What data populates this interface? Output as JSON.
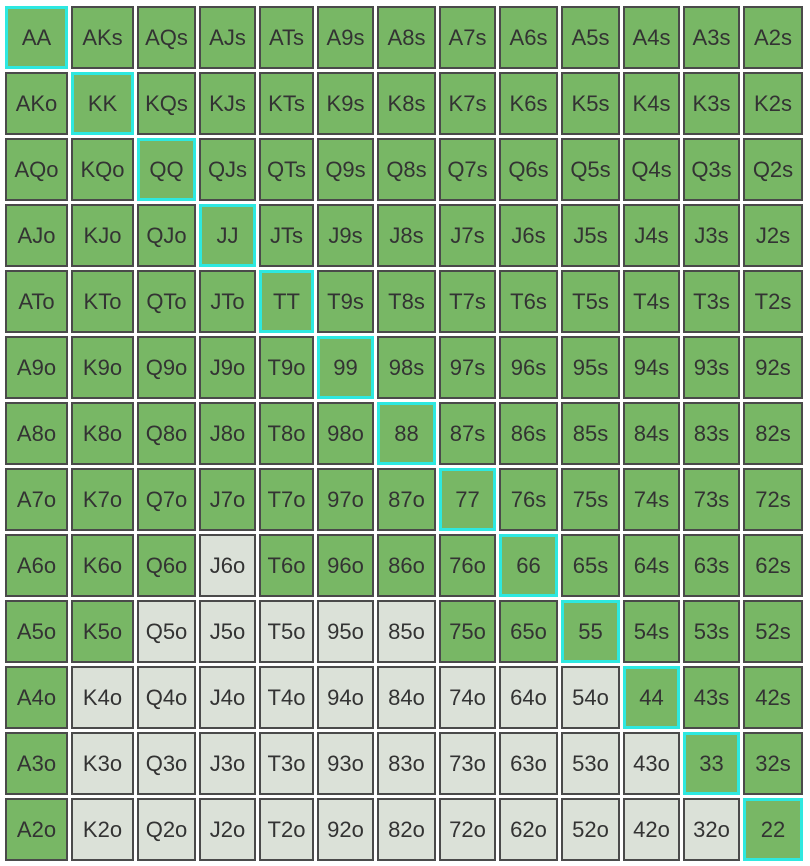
{
  "colors": {
    "selected": "#78b765",
    "unselected": "#dbe1d8",
    "pair_border": "#2ee8e0",
    "cell_border": "#4a4a4a",
    "text": "#333333"
  },
  "grid": {
    "rows": [
      [
        {
          "label": "AA",
          "selected": true,
          "pair": true
        },
        {
          "label": "AKs",
          "selected": true
        },
        {
          "label": "AQs",
          "selected": true
        },
        {
          "label": "AJs",
          "selected": true
        },
        {
          "label": "ATs",
          "selected": true
        },
        {
          "label": "A9s",
          "selected": true
        },
        {
          "label": "A8s",
          "selected": true
        },
        {
          "label": "A7s",
          "selected": true
        },
        {
          "label": "A6s",
          "selected": true
        },
        {
          "label": "A5s",
          "selected": true
        },
        {
          "label": "A4s",
          "selected": true
        },
        {
          "label": "A3s",
          "selected": true
        },
        {
          "label": "A2s",
          "selected": true
        }
      ],
      [
        {
          "label": "AKo",
          "selected": true
        },
        {
          "label": "KK",
          "selected": true,
          "pair": true
        },
        {
          "label": "KQs",
          "selected": true
        },
        {
          "label": "KJs",
          "selected": true
        },
        {
          "label": "KTs",
          "selected": true
        },
        {
          "label": "K9s",
          "selected": true
        },
        {
          "label": "K8s",
          "selected": true
        },
        {
          "label": "K7s",
          "selected": true
        },
        {
          "label": "K6s",
          "selected": true
        },
        {
          "label": "K5s",
          "selected": true
        },
        {
          "label": "K4s",
          "selected": true
        },
        {
          "label": "K3s",
          "selected": true
        },
        {
          "label": "K2s",
          "selected": true
        }
      ],
      [
        {
          "label": "AQo",
          "selected": true
        },
        {
          "label": "KQo",
          "selected": true
        },
        {
          "label": "QQ",
          "selected": true,
          "pair": true
        },
        {
          "label": "QJs",
          "selected": true
        },
        {
          "label": "QTs",
          "selected": true
        },
        {
          "label": "Q9s",
          "selected": true
        },
        {
          "label": "Q8s",
          "selected": true
        },
        {
          "label": "Q7s",
          "selected": true
        },
        {
          "label": "Q6s",
          "selected": true
        },
        {
          "label": "Q5s",
          "selected": true
        },
        {
          "label": "Q4s",
          "selected": true
        },
        {
          "label": "Q3s",
          "selected": true
        },
        {
          "label": "Q2s",
          "selected": true
        }
      ],
      [
        {
          "label": "AJo",
          "selected": true
        },
        {
          "label": "KJo",
          "selected": true
        },
        {
          "label": "QJo",
          "selected": true
        },
        {
          "label": "JJ",
          "selected": true,
          "pair": true
        },
        {
          "label": "JTs",
          "selected": true
        },
        {
          "label": "J9s",
          "selected": true
        },
        {
          "label": "J8s",
          "selected": true
        },
        {
          "label": "J7s",
          "selected": true
        },
        {
          "label": "J6s",
          "selected": true
        },
        {
          "label": "J5s",
          "selected": true
        },
        {
          "label": "J4s",
          "selected": true
        },
        {
          "label": "J3s",
          "selected": true
        },
        {
          "label": "J2s",
          "selected": true
        }
      ],
      [
        {
          "label": "ATo",
          "selected": true
        },
        {
          "label": "KTo",
          "selected": true
        },
        {
          "label": "QTo",
          "selected": true
        },
        {
          "label": "JTo",
          "selected": true
        },
        {
          "label": "TT",
          "selected": true,
          "pair": true
        },
        {
          "label": "T9s",
          "selected": true
        },
        {
          "label": "T8s",
          "selected": true
        },
        {
          "label": "T7s",
          "selected": true
        },
        {
          "label": "T6s",
          "selected": true
        },
        {
          "label": "T5s",
          "selected": true
        },
        {
          "label": "T4s",
          "selected": true
        },
        {
          "label": "T3s",
          "selected": true
        },
        {
          "label": "T2s",
          "selected": true
        }
      ],
      [
        {
          "label": "A9o",
          "selected": true
        },
        {
          "label": "K9o",
          "selected": true
        },
        {
          "label": "Q9o",
          "selected": true
        },
        {
          "label": "J9o",
          "selected": true
        },
        {
          "label": "T9o",
          "selected": true
        },
        {
          "label": "99",
          "selected": true,
          "pair": true
        },
        {
          "label": "98s",
          "selected": true
        },
        {
          "label": "97s",
          "selected": true
        },
        {
          "label": "96s",
          "selected": true
        },
        {
          "label": "95s",
          "selected": true
        },
        {
          "label": "94s",
          "selected": true
        },
        {
          "label": "93s",
          "selected": true
        },
        {
          "label": "92s",
          "selected": true
        }
      ],
      [
        {
          "label": "A8o",
          "selected": true
        },
        {
          "label": "K8o",
          "selected": true
        },
        {
          "label": "Q8o",
          "selected": true
        },
        {
          "label": "J8o",
          "selected": true
        },
        {
          "label": "T8o",
          "selected": true
        },
        {
          "label": "98o",
          "selected": true
        },
        {
          "label": "88",
          "selected": true,
          "pair": true
        },
        {
          "label": "87s",
          "selected": true
        },
        {
          "label": "86s",
          "selected": true
        },
        {
          "label": "85s",
          "selected": true
        },
        {
          "label": "84s",
          "selected": true
        },
        {
          "label": "83s",
          "selected": true
        },
        {
          "label": "82s",
          "selected": true
        }
      ],
      [
        {
          "label": "A7o",
          "selected": true
        },
        {
          "label": "K7o",
          "selected": true
        },
        {
          "label": "Q7o",
          "selected": true
        },
        {
          "label": "J7o",
          "selected": true
        },
        {
          "label": "T7o",
          "selected": true
        },
        {
          "label": "97o",
          "selected": true
        },
        {
          "label": "87o",
          "selected": true
        },
        {
          "label": "77",
          "selected": true,
          "pair": true
        },
        {
          "label": "76s",
          "selected": true
        },
        {
          "label": "75s",
          "selected": true
        },
        {
          "label": "74s",
          "selected": true
        },
        {
          "label": "73s",
          "selected": true
        },
        {
          "label": "72s",
          "selected": true
        }
      ],
      [
        {
          "label": "A6o",
          "selected": true
        },
        {
          "label": "K6o",
          "selected": true
        },
        {
          "label": "Q6o",
          "selected": true
        },
        {
          "label": "J6o",
          "selected": false
        },
        {
          "label": "T6o",
          "selected": true
        },
        {
          "label": "96o",
          "selected": true
        },
        {
          "label": "86o",
          "selected": true
        },
        {
          "label": "76o",
          "selected": true
        },
        {
          "label": "66",
          "selected": true,
          "pair": true
        },
        {
          "label": "65s",
          "selected": true
        },
        {
          "label": "64s",
          "selected": true
        },
        {
          "label": "63s",
          "selected": true
        },
        {
          "label": "62s",
          "selected": true
        }
      ],
      [
        {
          "label": "A5o",
          "selected": true
        },
        {
          "label": "K5o",
          "selected": true
        },
        {
          "label": "Q5o",
          "selected": false
        },
        {
          "label": "J5o",
          "selected": false
        },
        {
          "label": "T5o",
          "selected": false
        },
        {
          "label": "95o",
          "selected": false
        },
        {
          "label": "85o",
          "selected": false
        },
        {
          "label": "75o",
          "selected": true
        },
        {
          "label": "65o",
          "selected": true
        },
        {
          "label": "55",
          "selected": true,
          "pair": true
        },
        {
          "label": "54s",
          "selected": true
        },
        {
          "label": "53s",
          "selected": true
        },
        {
          "label": "52s",
          "selected": true
        }
      ],
      [
        {
          "label": "A4o",
          "selected": true
        },
        {
          "label": "K4o",
          "selected": false
        },
        {
          "label": "Q4o",
          "selected": false
        },
        {
          "label": "J4o",
          "selected": false
        },
        {
          "label": "T4o",
          "selected": false
        },
        {
          "label": "94o",
          "selected": false
        },
        {
          "label": "84o",
          "selected": false
        },
        {
          "label": "74o",
          "selected": false
        },
        {
          "label": "64o",
          "selected": false
        },
        {
          "label": "54o",
          "selected": false
        },
        {
          "label": "44",
          "selected": true,
          "pair": true
        },
        {
          "label": "43s",
          "selected": true
        },
        {
          "label": "42s",
          "selected": true
        }
      ],
      [
        {
          "label": "A3o",
          "selected": true
        },
        {
          "label": "K3o",
          "selected": false
        },
        {
          "label": "Q3o",
          "selected": false
        },
        {
          "label": "J3o",
          "selected": false
        },
        {
          "label": "T3o",
          "selected": false
        },
        {
          "label": "93o",
          "selected": false
        },
        {
          "label": "83o",
          "selected": false
        },
        {
          "label": "73o",
          "selected": false
        },
        {
          "label": "63o",
          "selected": false
        },
        {
          "label": "53o",
          "selected": false
        },
        {
          "label": "43o",
          "selected": false
        },
        {
          "label": "33",
          "selected": true,
          "pair": true
        },
        {
          "label": "32s",
          "selected": true
        }
      ],
      [
        {
          "label": "A2o",
          "selected": true
        },
        {
          "label": "K2o",
          "selected": false
        },
        {
          "label": "Q2o",
          "selected": false
        },
        {
          "label": "J2o",
          "selected": false
        },
        {
          "label": "T2o",
          "selected": false
        },
        {
          "label": "92o",
          "selected": false
        },
        {
          "label": "82o",
          "selected": false
        },
        {
          "label": "72o",
          "selected": false
        },
        {
          "label": "62o",
          "selected": false
        },
        {
          "label": "52o",
          "selected": false
        },
        {
          "label": "42o",
          "selected": false
        },
        {
          "label": "32o",
          "selected": false
        },
        {
          "label": "22",
          "selected": true,
          "pair": true
        }
      ]
    ]
  }
}
